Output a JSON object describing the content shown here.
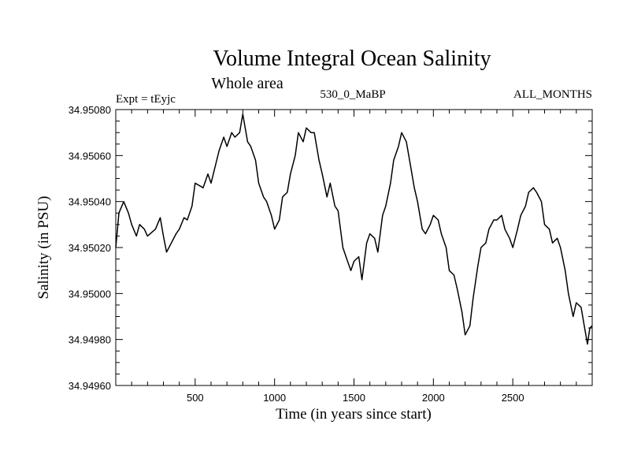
{
  "chart_data": {
    "type": "line",
    "title": "Volume Integral Ocean Salinity",
    "subtitle": "Whole area",
    "header_left": "Expt = tEyjc",
    "header_center": "530_0_MaBP",
    "header_right": "ALL_MONTHS",
    "xlabel": "Time (in years since start)",
    "ylabel": "Salinity (in PSU)",
    "xlim": [
      0,
      3000
    ],
    "ylim": [
      34.9496,
      34.9508
    ],
    "x_ticks": [
      500,
      1000,
      1500,
      2000,
      2500
    ],
    "x_tick_labels": [
      "500",
      "1000",
      "1500",
      "2000",
      "2500"
    ],
    "y_ticks": [
      34.9496,
      34.9498,
      34.95,
      34.9502,
      34.9504,
      34.9506,
      34.9508
    ],
    "y_tick_labels": [
      "34.94960",
      "34.94980",
      "34.95000",
      "34.95020",
      "34.95040",
      "34.95060",
      "34.95080"
    ],
    "grid": false,
    "series": [
      {
        "name": "Salinity",
        "color": "#000000",
        "x": [
          0,
          20,
          50,
          80,
          100,
          130,
          150,
          180,
          200,
          250,
          280,
          300,
          320,
          350,
          380,
          400,
          430,
          450,
          480,
          500,
          550,
          580,
          600,
          650,
          680,
          700,
          730,
          750,
          780,
          800,
          830,
          850,
          880,
          900,
          930,
          950,
          980,
          1000,
          1030,
          1050,
          1080,
          1100,
          1130,
          1150,
          1180,
          1200,
          1230,
          1250,
          1280,
          1300,
          1330,
          1350,
          1380,
          1400,
          1430,
          1450,
          1480,
          1500,
          1530,
          1550,
          1580,
          1600,
          1630,
          1650,
          1680,
          1700,
          1730,
          1750,
          1780,
          1800,
          1830,
          1850,
          1880,
          1900,
          1930,
          1950,
          1980,
          2000,
          2030,
          2050,
          2080,
          2100,
          2130,
          2150,
          2180,
          2200,
          2230,
          2250,
          2280,
          2300,
          2330,
          2350,
          2380,
          2400,
          2430,
          2450,
          2480,
          2500,
          2530,
          2550,
          2580,
          2600,
          2630,
          2650,
          2680,
          2700,
          2730,
          2750,
          2780,
          2800,
          2830,
          2850,
          2880,
          2900,
          2930,
          2950,
          2970,
          2985,
          3000
        ],
        "values": [
          34.9502,
          34.95035,
          34.9504,
          34.95035,
          34.9503,
          34.95025,
          34.9503,
          34.95028,
          34.95025,
          34.95028,
          34.95033,
          34.95025,
          34.95018,
          34.95022,
          34.95026,
          34.95028,
          34.95033,
          34.95032,
          34.95038,
          34.95048,
          34.95046,
          34.95052,
          34.95048,
          34.95062,
          34.95068,
          34.95064,
          34.9507,
          34.95068,
          34.9507,
          34.95078,
          34.95066,
          34.95064,
          34.95058,
          34.95048,
          34.95042,
          34.9504,
          34.95034,
          34.95028,
          34.95032,
          34.95042,
          34.95044,
          34.95052,
          34.9506,
          34.9507,
          34.95066,
          34.95072,
          34.9507,
          34.9507,
          34.95058,
          34.95052,
          34.95042,
          34.95048,
          34.95038,
          34.95036,
          34.9502,
          34.95016,
          34.9501,
          34.95014,
          34.95016,
          34.95006,
          34.95022,
          34.95026,
          34.95024,
          34.95018,
          34.95034,
          34.95038,
          34.95048,
          34.95058,
          34.95064,
          34.9507,
          34.95066,
          34.95058,
          34.95046,
          34.9504,
          34.95028,
          34.95026,
          34.9503,
          34.95034,
          34.95032,
          34.95026,
          34.9502,
          34.9501,
          34.95008,
          34.95002,
          34.94992,
          34.94982,
          34.94986,
          34.94998,
          34.95012,
          34.9502,
          34.95022,
          34.95028,
          34.95032,
          34.95032,
          34.95034,
          34.95028,
          34.95024,
          34.9502,
          34.95028,
          34.95034,
          34.95038,
          34.95044,
          34.95046,
          34.95044,
          34.9504,
          34.9503,
          34.95028,
          34.95022,
          34.95024,
          34.9502,
          34.9501,
          34.95,
          34.9499,
          34.94996,
          34.94994,
          34.94986,
          34.94978,
          34.94985,
          34.94986
        ]
      }
    ]
  }
}
